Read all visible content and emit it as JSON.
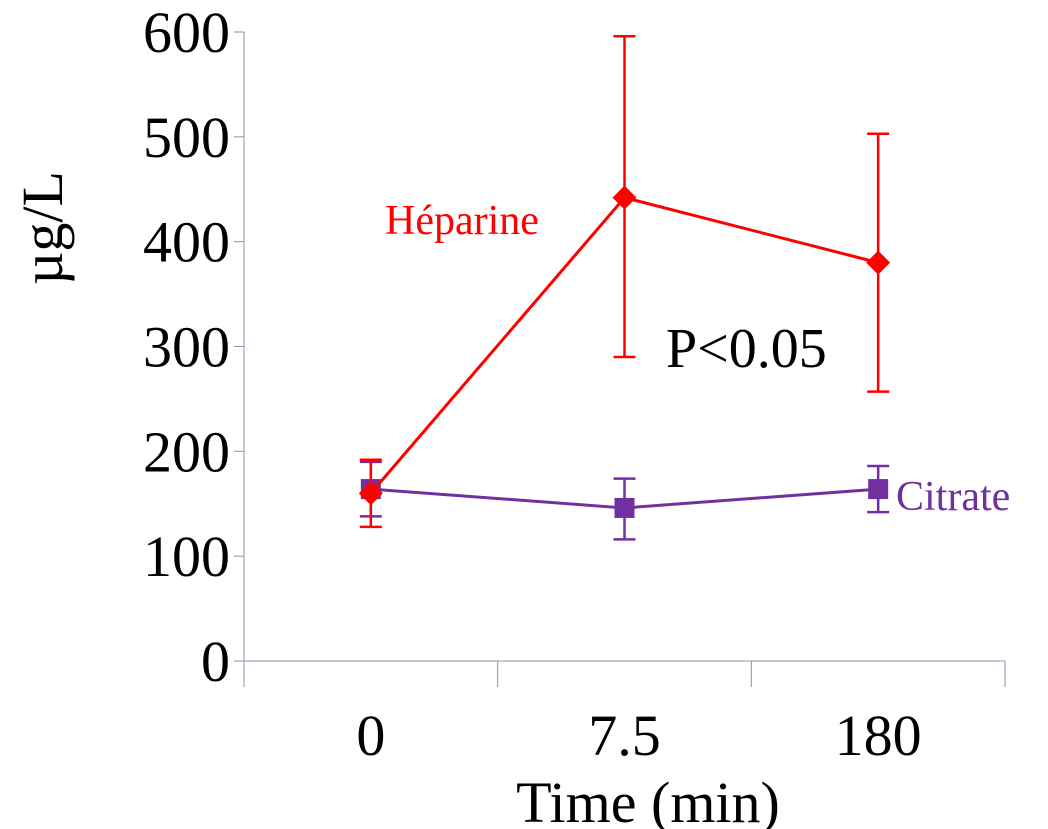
{
  "chart_data": {
    "type": "line",
    "title": "",
    "xlabel": "Time (min)",
    "ylabel": "µg/L",
    "categories": [
      "0",
      "7.5",
      "180"
    ],
    "ylim": [
      0,
      600
    ],
    "yticks": [
      "0",
      "100",
      "200",
      "300",
      "400",
      "500",
      "600"
    ],
    "grid": false,
    "legend": "inline",
    "series": [
      {
        "name": "Héparine",
        "color": "#ff0000",
        "marker": "diamond",
        "values": [
          160,
          442,
          380
        ],
        "error_low": [
          128,
          290,
          257
        ],
        "error_high": [
          192,
          596,
          503
        ]
      },
      {
        "name": "Citrate",
        "color": "#7030a0",
        "marker": "square",
        "values": [
          164,
          146,
          164
        ],
        "error_low": [
          138,
          116,
          142
        ],
        "error_high": [
          190,
          174,
          186
        ]
      }
    ],
    "annotations": [
      {
        "text": "P<0.05"
      }
    ]
  }
}
